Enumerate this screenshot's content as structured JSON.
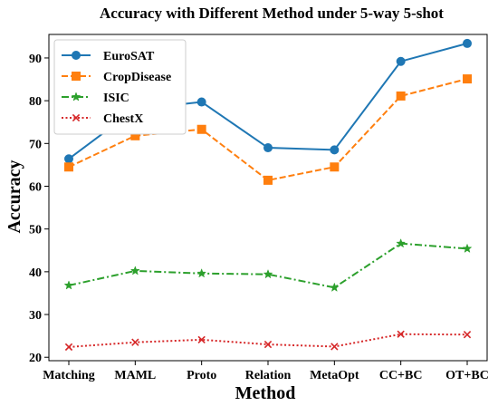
{
  "chart_data": {
    "type": "line",
    "title": "Accuracy with Different Method under 5-way 5-shot",
    "xlabel": "Method",
    "ylabel": "Accuracy",
    "categories": [
      "Matching",
      "MAML",
      "Proto",
      "Relation",
      "MetaOpt",
      "CC+BC",
      "OT+BC"
    ],
    "ylim": [
      19.2,
      95.5
    ],
    "yticks": [
      20,
      30,
      40,
      50,
      60,
      70,
      80,
      90
    ],
    "grid": false,
    "legend_position": "upper-left",
    "series": [
      {
        "name": "EuroSAT",
        "values": [
          66.4,
          78.0,
          79.7,
          69.0,
          68.5,
          89.2,
          93.4
        ],
        "color": "#1f77b4",
        "dash": "solid",
        "marker": "circle"
      },
      {
        "name": "CropDisease",
        "values": [
          64.5,
          71.8,
          73.3,
          61.4,
          64.5,
          81.1,
          85.1
        ],
        "color": "#ff7f0e",
        "dash": "dashed",
        "marker": "square"
      },
      {
        "name": "ISIC",
        "values": [
          36.8,
          40.2,
          39.6,
          39.4,
          36.3,
          46.6,
          45.4
        ],
        "color": "#2ca02c",
        "dash": "dashdot",
        "marker": "star"
      },
      {
        "name": "ChestX",
        "values": [
          22.4,
          23.5,
          24.1,
          23.0,
          22.5,
          25.4,
          25.3
        ],
        "color": "#d62728",
        "dash": "dotted",
        "marker": "x"
      }
    ]
  }
}
